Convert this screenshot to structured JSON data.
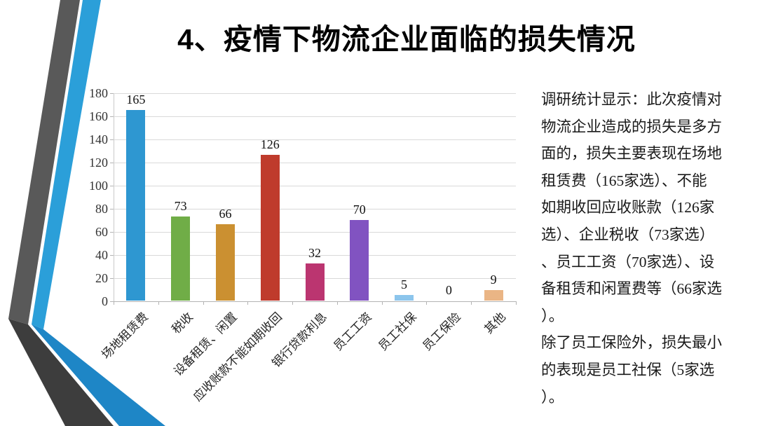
{
  "slide": {
    "title": "4、疫情下物流企业面临的损失情况"
  },
  "chart_data": {
    "type": "bar",
    "title": "",
    "categories": [
      "场地租赁费",
      "税收",
      "设备租赁、闲置",
      "应收账款不能如期收回",
      "银行贷款利息",
      "员工工资",
      "员工社保",
      "员工保险",
      "其他"
    ],
    "values": [
      165,
      73,
      66,
      126,
      32,
      70,
      5,
      0,
      9
    ],
    "bar_colors": [
      "#2e97d1",
      "#70ad47",
      "#cb9031",
      "#bf3b2c",
      "#bb3570",
      "#8153c1",
      "#8cc5ec",
      null,
      "#eab585"
    ],
    "ylim": [
      0,
      180
    ],
    "ytick_step": 20,
    "xlabel": "",
    "ylabel": "",
    "grid": true,
    "legend": false,
    "value_labels": true,
    "xtick_rotation_deg": 45,
    "grid_color": "#d9d9d9",
    "axis_color": "#b3b3b3"
  },
  "commentary": {
    "text": "调研统计显示：此次疫情对\n物流企业造成的损失是多方\n面的，损失主要表现在场地\n租赁费（165家选）、不能\n如期收回应收账款（126家\n选）、企业税收（73家选）\n、员工工资（70家选）、设\n备租赁和闲置费等（66家选\n）。\n除了员工保险外，损失最小\n的表现是员工社保（5家选\n）。"
  },
  "decoration": {
    "gray_upper": "#595959",
    "gray_lower": "#3d3d3d",
    "blue_upper": "#2b9fd9",
    "blue_lower": "#1e86c6"
  }
}
